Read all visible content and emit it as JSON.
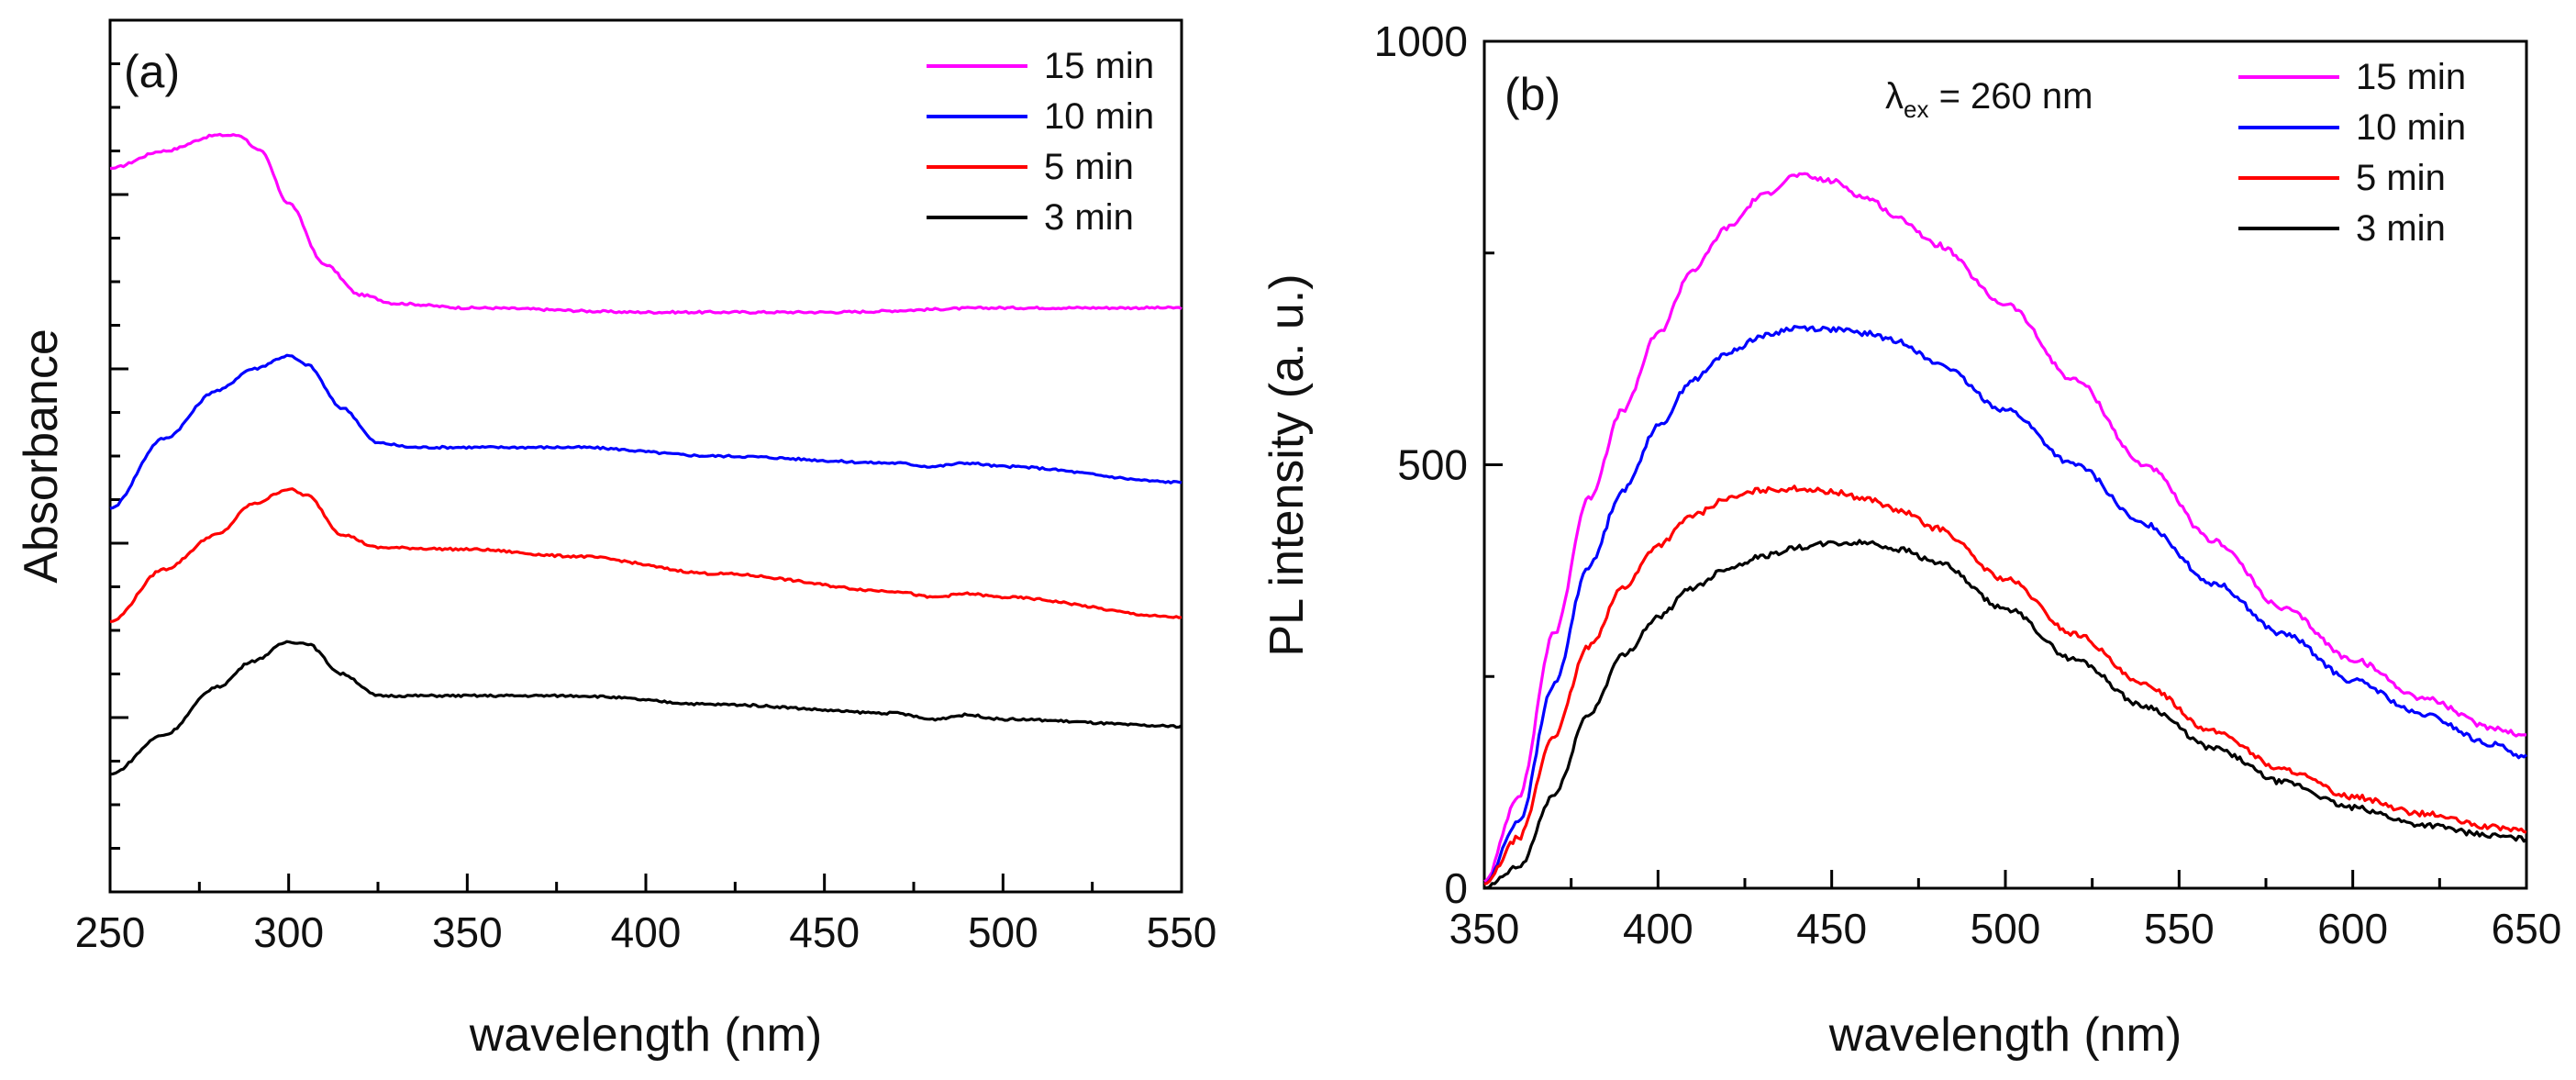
{
  "chart_data": [
    {
      "panel": "(a)",
      "type": "line",
      "xlabel": "wavelength (nm)",
      "ylabel": "Absorbance",
      "xlim": [
        250,
        550
      ],
      "ylim": [
        0,
        10
      ],
      "x_ticks": [
        250,
        300,
        350,
        400,
        450,
        500,
        550
      ],
      "y_ticks_labeled": false,
      "legend_position": "top-right",
      "series": [
        {
          "name": "15 min",
          "color": "#ff00ff",
          "x": [
            250,
            265,
            280,
            286,
            292,
            300,
            310,
            320,
            330,
            350,
            400,
            450,
            500,
            550
          ],
          "y": [
            8.3,
            8.5,
            8.68,
            8.68,
            8.5,
            7.9,
            7.2,
            6.85,
            6.75,
            6.7,
            6.65,
            6.65,
            6.7,
            6.7
          ]
        },
        {
          "name": "10 min",
          "color": "#0000ff",
          "x": [
            250,
            265,
            280,
            290,
            300,
            305,
            315,
            325,
            335,
            350,
            380,
            420,
            470,
            480,
            490,
            500,
            550
          ],
          "y": [
            4.4,
            5.2,
            5.75,
            6.0,
            6.15,
            6.05,
            5.55,
            5.15,
            5.1,
            5.1,
            5.1,
            5.0,
            4.92,
            4.88,
            4.92,
            4.88,
            4.7
          ]
        },
        {
          "name": "5 min",
          "color": "#ff0000",
          "x": [
            250,
            265,
            280,
            290,
            300,
            305,
            315,
            325,
            350,
            380,
            420,
            470,
            480,
            490,
            500,
            550
          ],
          "y": [
            3.1,
            3.7,
            4.1,
            4.45,
            4.62,
            4.55,
            4.1,
            3.95,
            3.93,
            3.85,
            3.65,
            3.45,
            3.38,
            3.42,
            3.38,
            3.15
          ]
        },
        {
          "name": "3 min",
          "color": "#000000",
          "x": [
            250,
            265,
            280,
            290,
            300,
            305,
            315,
            325,
            350,
            380,
            420,
            470,
            480,
            490,
            500,
            550
          ],
          "y": [
            1.35,
            1.8,
            2.35,
            2.65,
            2.87,
            2.85,
            2.5,
            2.25,
            2.25,
            2.25,
            2.15,
            2.05,
            1.98,
            2.03,
            1.98,
            1.9
          ]
        }
      ]
    },
    {
      "panel": "(b)",
      "type": "line",
      "annotation": "λex = 260 nm",
      "xlabel": "wavelength (nm)",
      "ylabel": "PL intensity (a. u.)",
      "xlim": [
        350,
        650
      ],
      "ylim": [
        0,
        1000
      ],
      "x_ticks": [
        350,
        400,
        450,
        500,
        550,
        600,
        650
      ],
      "y_ticks": [
        0,
        500,
        1000
      ],
      "legend_position": "top-right",
      "series": [
        {
          "name": "15 min",
          "color": "#ff00ff",
          "x": [
            350,
            360,
            370,
            380,
            390,
            400,
            410,
            420,
            430,
            440,
            450,
            460,
            470,
            480,
            500,
            520,
            540,
            560,
            580,
            600,
            620,
            640,
            650
          ],
          "y": [
            8,
            110,
            300,
            460,
            565,
            655,
            730,
            780,
            818,
            842,
            835,
            815,
            790,
            760,
            690,
            600,
            500,
            410,
            330,
            270,
            225,
            190,
            180
          ]
        },
        {
          "name": "10 min",
          "color": "#0000ff",
          "x": [
            350,
            360,
            370,
            380,
            390,
            400,
            410,
            420,
            430,
            440,
            450,
            460,
            470,
            480,
            500,
            520,
            540,
            560,
            580,
            600,
            620,
            640,
            650
          ],
          "y": [
            5,
            80,
            240,
            380,
            470,
            545,
            600,
            632,
            652,
            662,
            660,
            655,
            645,
            620,
            565,
            500,
            430,
            360,
            300,
            245,
            205,
            170,
            155
          ]
        },
        {
          "name": "5 min",
          "color": "#ff0000",
          "x": [
            350,
            360,
            370,
            380,
            390,
            400,
            410,
            420,
            430,
            440,
            450,
            460,
            470,
            480,
            500,
            520,
            540,
            560,
            580,
            600,
            620,
            640,
            650
          ],
          "y": [
            5,
            60,
            180,
            285,
            355,
            405,
            440,
            460,
            470,
            472,
            468,
            460,
            445,
            425,
            365,
            300,
            240,
            185,
            140,
            108,
            88,
            72,
            68
          ]
        },
        {
          "name": "3 min",
          "color": "#000000",
          "x": [
            350,
            360,
            370,
            380,
            390,
            400,
            410,
            420,
            430,
            440,
            450,
            460,
            470,
            480,
            500,
            520,
            540,
            560,
            580,
            600,
            620,
            640,
            650
          ],
          "y": [
            0,
            25,
            110,
            205,
            275,
            320,
            355,
            378,
            392,
            402,
            407,
            408,
            400,
            385,
            330,
            270,
            215,
            165,
            125,
            95,
            75,
            62,
            58
          ]
        }
      ]
    }
  ]
}
